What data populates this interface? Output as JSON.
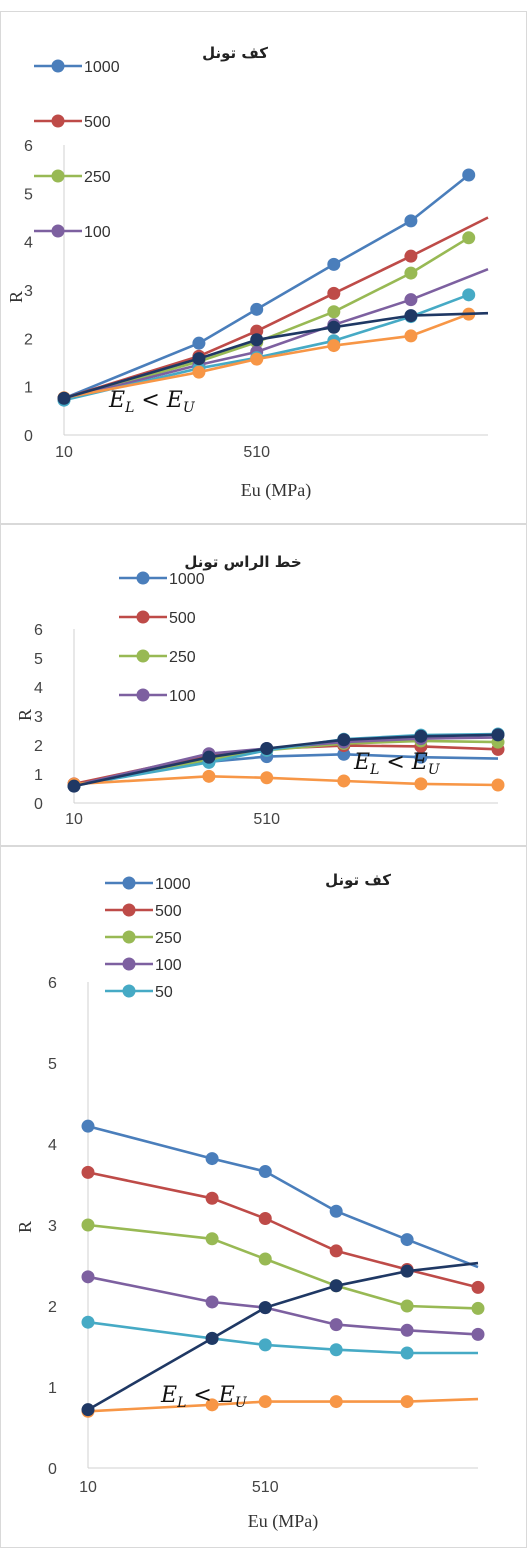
{
  "chart_data": [
    {
      "type": "line",
      "title": "کف تونل",
      "xlabel": "Eu (MPa)",
      "ylabel": "R",
      "xlim": [
        10,
        1110
      ],
      "ylim": [
        0,
        6
      ],
      "xticks": [
        "10",
        "510"
      ],
      "yticks": [
        "0",
        "1",
        "2",
        "3",
        "4",
        "5",
        "6"
      ],
      "annotation": "E_L < E_U",
      "legend_position": "top-left",
      "series": [
        {
          "name": "1000",
          "color": "#4a7ebb",
          "x": [
            10,
            360,
            510,
            710,
            910,
            1060
          ],
          "y": [
            0.76,
            1.9,
            2.6,
            3.53,
            4.43,
            5.38
          ],
          "markers": true,
          "tail": [
            1060,
            5.38
          ]
        },
        {
          "name": "500",
          "color": "#be4b48",
          "x": [
            10,
            360,
            510,
            710,
            910
          ],
          "y": [
            0.76,
            1.63,
            2.15,
            2.93,
            3.7
          ],
          "markers": true,
          "tail": [
            1110,
            4.5
          ]
        },
        {
          "name": "250",
          "color": "#98b954",
          "x": [
            10,
            360,
            510,
            710,
            910,
            1060
          ],
          "y": [
            0.74,
            1.52,
            1.92,
            2.55,
            3.35,
            4.08
          ],
          "markers": true,
          "tail": [
            1060,
            4.08
          ]
        },
        {
          "name": "100",
          "color": "#7d60a0",
          "x": [
            10,
            360,
            510,
            710,
            910
          ],
          "y": [
            0.74,
            1.45,
            1.72,
            2.28,
            2.8
          ],
          "markers": true,
          "tail": [
            1110,
            3.43
          ]
        },
        {
          "name": "",
          "color": "#46aac5",
          "x": [
            10,
            360,
            510,
            710,
            910,
            1060
          ],
          "y": [
            0.72,
            1.38,
            1.6,
            1.95,
            2.45,
            2.9
          ],
          "markers": true,
          "tail": [
            1060,
            2.9
          ]
        },
        {
          "name": "",
          "color": "#f79646",
          "x": [
            10,
            360,
            510,
            710,
            910,
            1060
          ],
          "y": [
            0.77,
            1.3,
            1.57,
            1.85,
            2.05,
            2.5
          ],
          "markers": true,
          "tail": [
            1060,
            2.5
          ]
        },
        {
          "name": "",
          "color": "#1f3864",
          "x": [
            10,
            360,
            510,
            710,
            910
          ],
          "y": [
            0.76,
            1.58,
            1.97,
            2.23,
            2.47
          ],
          "markers": true,
          "tail": [
            1110,
            2.52
          ]
        }
      ]
    },
    {
      "type": "line",
      "title": "خط الراس تونل",
      "xlabel": "Eu (MPa)",
      "ylabel": "R",
      "xlim": [
        10,
        1110
      ],
      "ylim": [
        0,
        6
      ],
      "xticks": [
        "10",
        "510"
      ],
      "yticks": [
        "0",
        "1",
        "2",
        "3",
        "4",
        "5",
        "6"
      ],
      "annotation": "E_L < E_U",
      "legend_position": "top-left",
      "series": [
        {
          "name": "1000",
          "color": "#4a7ebb",
          "x": [
            10,
            360,
            510,
            710,
            910
          ],
          "y": [
            0.62,
            1.42,
            1.6,
            1.68,
            1.58
          ],
          "markers": true,
          "tail": [
            1110,
            1.53
          ]
        },
        {
          "name": "500",
          "color": "#be4b48",
          "x": [
            10,
            360,
            510,
            710,
            910,
            1110
          ],
          "y": [
            0.66,
            1.65,
            1.87,
            1.98,
            1.95,
            1.85
          ],
          "markers": true,
          "tail": [
            1110,
            1.85
          ]
        },
        {
          "name": "250",
          "color": "#98b954",
          "x": [
            10,
            360,
            510,
            710,
            910,
            1110
          ],
          "y": [
            0.62,
            1.5,
            1.82,
            2.05,
            2.14,
            2.1
          ],
          "markers": true,
          "tail": [
            1110,
            2.1
          ]
        },
        {
          "name": "100",
          "color": "#7d60a0",
          "x": [
            10,
            360,
            510,
            710,
            910
          ],
          "y": [
            0.6,
            1.7,
            1.88,
            2.1,
            2.22
          ],
          "markers": true,
          "tail": [
            1110,
            2.26
          ]
        },
        {
          "name": "",
          "color": "#46aac5",
          "x": [
            10,
            360,
            510,
            710,
            910,
            1110
          ],
          "y": [
            0.6,
            1.4,
            1.82,
            2.2,
            2.34,
            2.38
          ],
          "markers": true,
          "tail": [
            1110,
            2.38
          ]
        },
        {
          "name": "",
          "color": "#f79646",
          "x": [
            10,
            360,
            510,
            710,
            910,
            1110
          ],
          "y": [
            0.65,
            0.92,
            0.87,
            0.76,
            0.66,
            0.62
          ],
          "markers": true,
          "tail": [
            1110,
            0.62
          ]
        },
        {
          "name": "",
          "color": "#1f3864",
          "x": [
            10,
            360,
            510,
            710,
            910,
            1110
          ],
          "y": [
            0.58,
            1.58,
            1.88,
            2.18,
            2.3,
            2.35
          ],
          "markers": true,
          "tail": [
            1110,
            2.35
          ]
        }
      ]
    },
    {
      "type": "line",
      "title": "کف تونل",
      "xlabel": "Eu (MPa)",
      "ylabel": "R",
      "xlim": [
        10,
        1110
      ],
      "ylim": [
        0,
        6
      ],
      "xticks": [
        "10",
        "510"
      ],
      "yticks": [
        "0",
        "1",
        "2",
        "3",
        "4",
        "5",
        "6"
      ],
      "annotation": "E_L < E_U",
      "legend_position": "top-left",
      "series": [
        {
          "name": "1000",
          "color": "#4a7ebb",
          "x": [
            10,
            360,
            510,
            710,
            910
          ],
          "y": [
            4.22,
            3.82,
            3.66,
            3.17,
            2.82
          ],
          "markers": true,
          "tail": [
            1110,
            2.48
          ]
        },
        {
          "name": "500",
          "color": "#be4b48",
          "x": [
            10,
            360,
            510,
            710,
            910,
            1110
          ],
          "y": [
            3.65,
            3.33,
            3.08,
            2.68,
            2.45,
            2.23
          ],
          "markers": true,
          "tail": [
            1110,
            2.23
          ]
        },
        {
          "name": "250",
          "color": "#98b954",
          "x": [
            10,
            360,
            510,
            710,
            910,
            1110
          ],
          "y": [
            3.0,
            2.83,
            2.58,
            2.25,
            2.0,
            1.97
          ],
          "markers": true,
          "tail": [
            1110,
            1.97
          ]
        },
        {
          "name": "100",
          "color": "#7d60a0",
          "x": [
            10,
            360,
            510,
            710,
            910,
            1110
          ],
          "y": [
            2.36,
            2.05,
            1.98,
            1.77,
            1.7,
            1.65
          ],
          "markers": true,
          "tail": [
            1110,
            1.65
          ]
        },
        {
          "name": "50",
          "color": "#46aac5",
          "x": [
            10,
            360,
            510,
            710,
            910
          ],
          "y": [
            1.8,
            1.6,
            1.52,
            1.46,
            1.42
          ],
          "markers": true,
          "tail": [
            1110,
            1.42
          ]
        },
        {
          "name": "",
          "color": "#f79646",
          "x": [
            10,
            360,
            510,
            710,
            910
          ],
          "y": [
            0.7,
            0.78,
            0.82,
            0.82,
            0.82
          ],
          "markers": true,
          "tail": [
            1110,
            0.85
          ]
        },
        {
          "name": "",
          "color": "#1f3864",
          "x": [
            10,
            360,
            510,
            710,
            910
          ],
          "y": [
            0.72,
            1.6,
            1.98,
            2.25,
            2.43
          ],
          "markers": true,
          "tail": [
            1110,
            2.53
          ]
        }
      ]
    }
  ]
}
